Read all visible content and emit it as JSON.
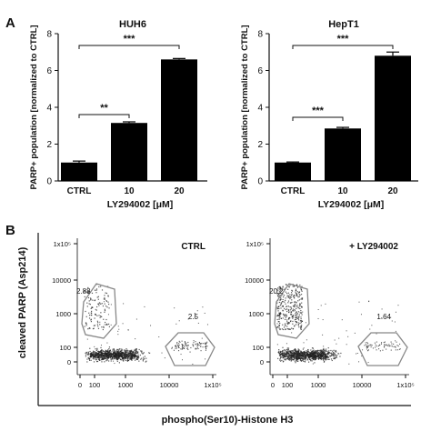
{
  "panels": {
    "a": "A",
    "b": "B"
  },
  "chart_data": [
    {
      "type": "bar",
      "title": "HUH6",
      "ylabel": "PARP+ population [normalized to CTRL]",
      "xlabel": "LY294002 [μM]",
      "categories": [
        "CTRL",
        "10",
        "20"
      ],
      "values": [
        1.0,
        3.15,
        6.6
      ],
      "errors": [
        0.08,
        0.06,
        0.05
      ],
      "ylim": [
        0,
        8
      ],
      "yticks": [
        "0",
        "2",
        "4",
        "6",
        "8"
      ],
      "significance": [
        {
          "from": "CTRL",
          "to": "10",
          "label": "**"
        },
        {
          "from": "CTRL",
          "to": "20",
          "label": "***"
        }
      ]
    },
    {
      "type": "bar",
      "title": "HepT1",
      "ylabel": "PARP+ population [normalized to CTRL]",
      "xlabel": "LY294002 [μM]",
      "categories": [
        "CTRL",
        "10",
        "20"
      ],
      "values": [
        1.0,
        2.85,
        6.8
      ],
      "errors": [
        0.03,
        0.06,
        0.2
      ],
      "ylim": [
        0,
        8
      ],
      "yticks": [
        "0",
        "2",
        "4",
        "6",
        "8"
      ],
      "significance": [
        {
          "from": "CTRL",
          "to": "10",
          "label": "***"
        },
        {
          "from": "CTRL",
          "to": "20",
          "label": "***"
        }
      ]
    },
    {
      "type": "scatter",
      "label": "CTRL",
      "xlabel": "phospho(Ser10)-Histone H3",
      "ylabel": "cleaved PARP (Asp214)",
      "xticks": [
        "0",
        "100",
        "1000",
        "10000",
        "1x10⁵"
      ],
      "yticks": [
        "0",
        "100",
        "1000",
        "10000",
        "1x10⁵"
      ],
      "gates": [
        {
          "name": "upper-left",
          "value": "2.88"
        },
        {
          "name": "lower-right",
          "value": "2.5"
        }
      ]
    },
    {
      "type": "scatter",
      "label": "+ LY294002",
      "xlabel": "phospho(Ser10)-Histone H3",
      "ylabel": "cleaved PARP (Asp214)",
      "xticks": [
        "0",
        "100",
        "1000",
        "10000",
        "1x10⁵"
      ],
      "yticks": [
        "0",
        "100",
        "1000",
        "10000",
        "1x10⁵"
      ],
      "gates": [
        {
          "name": "upper-left",
          "value": "20.2"
        },
        {
          "name": "lower-right",
          "value": "1.64"
        }
      ]
    }
  ]
}
